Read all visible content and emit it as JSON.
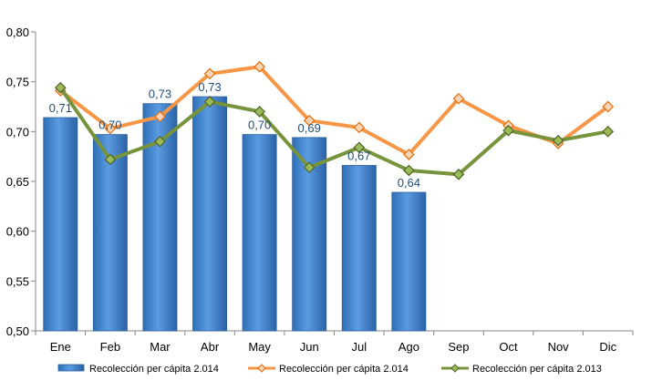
{
  "chart_data": {
    "type": "bar+line",
    "title": "",
    "xlabel": "",
    "ylabel": "",
    "categories": [
      "Ene",
      "Feb",
      "Mar",
      "Abr",
      "May",
      "Jun",
      "Jul",
      "Ago",
      "Sep",
      "Oct",
      "Nov",
      "Dic"
    ],
    "ylim": [
      0.5,
      0.8
    ],
    "yticks": [
      "0,50",
      "0,55",
      "0,60",
      "0,65",
      "0,70",
      "0,75",
      "0,80"
    ],
    "grid": "none",
    "legend_position": "bottom",
    "series": [
      {
        "name": "Recolección per cápita 2.014",
        "kind": "bar",
        "color": "#4a86d0",
        "values": [
          0.714,
          0.697,
          0.728,
          0.735,
          0.697,
          0.694,
          0.666,
          0.639,
          null,
          null,
          null,
          null
        ],
        "data_labels": [
          "0,71",
          "0,70",
          "0,73",
          "0,73",
          "0,70",
          "0,69",
          "0,67",
          "0,64",
          "",
          "",
          "",
          ""
        ]
      },
      {
        "name": "Recolección per cápita 2.014",
        "kind": "line",
        "color": "#f79646",
        "values": [
          0.741,
          0.703,
          0.715,
          0.758,
          0.765,
          0.711,
          0.704,
          0.677,
          0.733,
          0.706,
          0.688,
          0.725
        ]
      },
      {
        "name": "Recolección per cápita 2.013",
        "kind": "line",
        "color": "#77933c",
        "values": [
          0.744,
          0.672,
          0.69,
          0.73,
          0.72,
          0.664,
          0.684,
          0.661,
          0.657,
          0.701,
          0.691,
          0.7
        ]
      }
    ]
  }
}
